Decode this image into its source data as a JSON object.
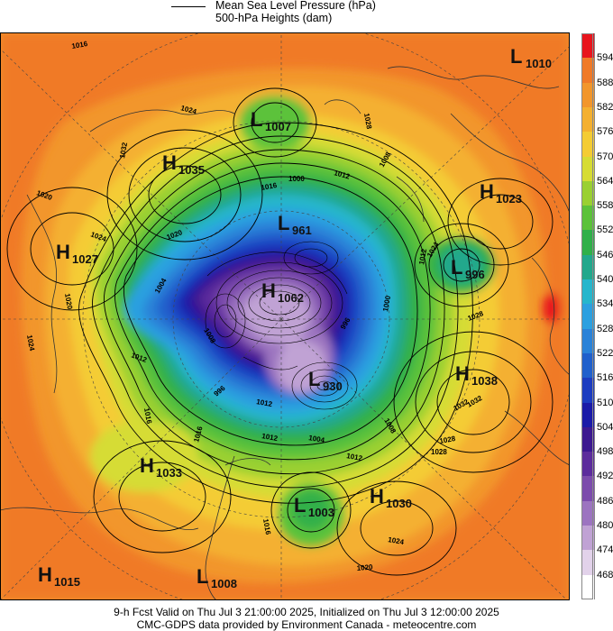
{
  "legend": {
    "line1": "Mean Sea Level Pressure (hPa)",
    "line2": "500-hPa Heights (dam)"
  },
  "colorbar": {
    "levels": [
      "594",
      "588",
      "582",
      "576",
      "570",
      "564",
      "558",
      "552",
      "546",
      "540",
      "534",
      "528",
      "522",
      "516",
      "510",
      "504",
      "498",
      "492",
      "486",
      "480",
      "474",
      "468"
    ],
    "colors": [
      "#e8141c",
      "#f07a28",
      "#f2962c",
      "#f4b030",
      "#f4cc34",
      "#d6dc34",
      "#9ad032",
      "#5cc23a",
      "#30b04a",
      "#22a88c",
      "#26b6cc",
      "#2ca0e0",
      "#2a82d8",
      "#2060cc",
      "#1c3cc0",
      "#1a1aa8",
      "#3c1890",
      "#5c2c9c",
      "#7c4cac",
      "#9c74c0",
      "#c0a2d4",
      "#e2d2ea",
      "#ffffff"
    ]
  },
  "pressure_centers": [
    {
      "type": "L",
      "value": "1010"
    },
    {
      "type": "L",
      "value": "1007"
    },
    {
      "type": "H",
      "value": "1035"
    },
    {
      "type": "H",
      "value": "1023"
    },
    {
      "type": "H",
      "value": "1027"
    },
    {
      "type": "L",
      "value": "961"
    },
    {
      "type": "L",
      "value": "996"
    },
    {
      "type": "H",
      "value": "1062"
    },
    {
      "type": "H",
      "value": "1038"
    },
    {
      "type": "L",
      "value": "930"
    },
    {
      "type": "H",
      "value": "1033"
    },
    {
      "type": "H",
      "value": "1030"
    },
    {
      "type": "L",
      "value": "1003"
    },
    {
      "type": "H",
      "value": "1015"
    },
    {
      "type": "L",
      "value": "1008"
    }
  ],
  "isobar_labels": [
    "1016",
    "1024",
    "1028",
    "1032",
    "1020",
    "1008",
    "1012",
    "1000",
    "1024",
    "1020",
    "1016",
    "1012",
    "1024",
    "1028",
    "1032",
    "1000",
    "1004",
    "1008",
    "1012",
    "1028",
    "1024",
    "1020",
    "1016",
    "1012",
    "1004",
    "996",
    "1016",
    "1012",
    "1008",
    "1024",
    "1020",
    "1016",
    "1012",
    "1028",
    "1032",
    "996"
  ],
  "footer": {
    "line1": "9-h Fcst Valid on Thu Jul  3 21:00:00 2025, Initialized on Thu Jul  3 12:00:00 2025",
    "line2": "CMC-GDPS data provided by Environment Canada - meteocentre.com"
  }
}
